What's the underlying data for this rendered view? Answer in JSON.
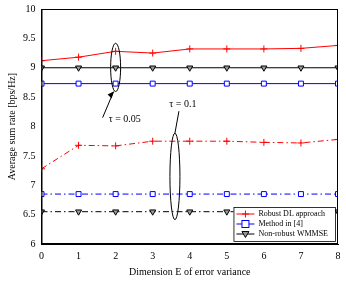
{
  "chart_data": {
    "type": "line",
    "x_label": "Dimension E of error variance",
    "y_label": "Average sum rate [bps/Hz]",
    "x": [
      0,
      1,
      2,
      3,
      4,
      5,
      6,
      7,
      8
    ],
    "xlim": [
      0,
      8
    ],
    "xticks": [
      0,
      1,
      2,
      3,
      4,
      5,
      6,
      7,
      8
    ],
    "ylim": [
      6,
      10
    ],
    "yticks": [
      6,
      6.5,
      7,
      7.5,
      8,
      8.5,
      9,
      9.5,
      10
    ],
    "grid": false,
    "legend": "lower right",
    "annotations": [
      "τ = 0.05",
      "τ = 0.1"
    ],
    "series": [
      {
        "name": "Robust DL approach",
        "color": "#ff0000",
        "marker": "plus",
        "line_style": "solid",
        "values": [
          9.12,
          9.18,
          9.28,
          9.25,
          9.32,
          9.32,
          9.32,
          9.33,
          9.38
        ]
      },
      {
        "name": "Method in [4]",
        "color": "#0000ff",
        "marker": "square",
        "line_style": "solid",
        "values": [
          8.73,
          8.73,
          8.73,
          8.73,
          8.73,
          8.73,
          8.73,
          8.73,
          8.73
        ]
      },
      {
        "name": "Non-robust WMMSE",
        "color": "#000000",
        "marker": "triangle_down",
        "line_style": "solid",
        "values": [
          9.0,
          9.0,
          9.0,
          9.0,
          9.0,
          9.0,
          9.0,
          9.0,
          9.0
        ]
      },
      {
        "name": "Robust DL approach",
        "color": "#ff0000",
        "marker": "plus",
        "line_style": "dashdot",
        "values": [
          7.28,
          7.68,
          7.67,
          7.75,
          7.75,
          7.75,
          7.73,
          7.72,
          7.78
        ]
      },
      {
        "name": "Method in [4]",
        "color": "#0000ff",
        "marker": "square",
        "line_style": "dashdot",
        "values": [
          6.85,
          6.85,
          6.85,
          6.85,
          6.85,
          6.85,
          6.85,
          6.85,
          6.85
        ]
      },
      {
        "name": "Non-robust WMMSE",
        "color": "#000000",
        "marker": "triangle_down",
        "line_style": "dashdot",
        "values": [
          6.55,
          6.55,
          6.55,
          6.55,
          6.55,
          6.55,
          6.55,
          6.55,
          6.55
        ]
      }
    ]
  }
}
